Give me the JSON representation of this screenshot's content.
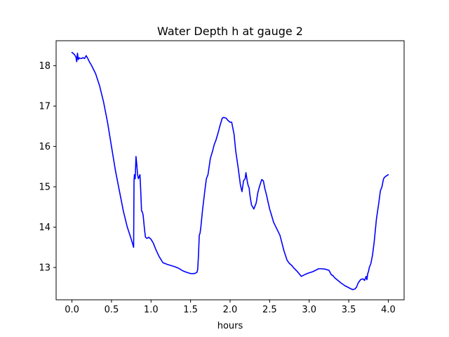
{
  "chart_data": {
    "type": "line",
    "title": "Water Depth h at gauge 2",
    "xlabel": "hours",
    "ylabel": "",
    "xlim": [
      -0.2,
      4.2
    ],
    "ylim": [
      12.2,
      18.62
    ],
    "grid": false,
    "xticks": [
      0.0,
      0.5,
      1.0,
      1.5,
      2.0,
      2.5,
      3.0,
      3.5,
      4.0
    ],
    "xtick_labels": [
      "0.0",
      "0.5",
      "1.0",
      "1.5",
      "2.0",
      "2.5",
      "3.0",
      "3.5",
      "4.0"
    ],
    "yticks": [
      13,
      14,
      15,
      16,
      17,
      18
    ],
    "ytick_labels": [
      "13",
      "14",
      "15",
      "16",
      "17",
      "18"
    ],
    "series": [
      {
        "color": "#0000ff",
        "x": [
          0.0,
          0.03,
          0.05,
          0.06,
          0.07,
          0.08,
          0.09,
          0.1,
          0.12,
          0.14,
          0.16,
          0.18,
          0.2,
          0.22,
          0.25,
          0.3,
          0.35,
          0.4,
          0.45,
          0.5,
          0.55,
          0.6,
          0.65,
          0.7,
          0.75,
          0.78,
          0.785,
          0.79,
          0.8,
          0.81,
          0.82,
          0.83,
          0.84,
          0.85,
          0.86,
          0.87,
          0.88,
          0.89,
          0.9,
          0.92,
          0.93,
          0.95,
          0.97,
          1.0,
          1.03,
          1.06,
          1.1,
          1.15,
          1.2,
          1.25,
          1.3,
          1.35,
          1.4,
          1.45,
          1.5,
          1.55,
          1.58,
          1.59,
          1.6,
          1.61,
          1.62,
          1.63,
          1.65,
          1.68,
          1.7,
          1.72,
          1.75,
          1.78,
          1.8,
          1.82,
          1.85,
          1.87,
          1.9,
          1.92,
          1.95,
          1.97,
          2.0,
          2.02,
          2.05,
          2.07,
          2.1,
          2.13,
          2.15,
          2.17,
          2.19,
          2.2,
          2.22,
          2.23,
          2.24,
          2.25,
          2.27,
          2.28,
          2.3,
          2.33,
          2.35,
          2.37,
          2.4,
          2.42,
          2.44,
          2.46,
          2.48,
          2.5,
          2.52,
          2.55,
          2.58,
          2.6,
          2.63,
          2.65,
          2.68,
          2.7,
          2.72,
          2.75,
          2.78,
          2.8,
          2.85,
          2.9,
          2.95,
          3.0,
          3.02,
          3.05,
          3.1,
          3.12,
          3.15,
          3.2,
          3.25,
          3.28,
          3.3,
          3.32,
          3.35,
          3.4,
          3.45,
          3.5,
          3.55,
          3.58,
          3.6,
          3.62,
          3.65,
          3.68,
          3.7,
          3.72,
          3.73,
          3.74,
          3.75,
          3.76,
          3.78,
          3.8,
          3.82,
          3.85,
          3.88,
          3.9,
          3.92,
          3.94,
          3.96,
          4.0
        ],
        "y": [
          18.33,
          18.28,
          18.22,
          18.1,
          18.31,
          18.15,
          18.2,
          18.18,
          18.18,
          18.2,
          18.18,
          18.25,
          18.18,
          18.1,
          18.0,
          17.8,
          17.5,
          17.1,
          16.6,
          16.0,
          15.4,
          14.9,
          14.4,
          14.0,
          13.7,
          13.5,
          15.15,
          15.3,
          15.2,
          15.75,
          15.55,
          15.3,
          15.2,
          15.25,
          15.3,
          14.9,
          14.4,
          14.38,
          14.3,
          13.9,
          13.75,
          13.72,
          13.75,
          13.7,
          13.6,
          13.45,
          13.28,
          13.12,
          13.08,
          13.05,
          13.02,
          12.98,
          12.92,
          12.88,
          12.85,
          12.85,
          12.88,
          12.95,
          13.3,
          13.8,
          13.85,
          14.0,
          14.4,
          14.9,
          15.2,
          15.3,
          15.7,
          15.9,
          16.05,
          16.15,
          16.35,
          16.5,
          16.7,
          16.72,
          16.7,
          16.65,
          16.6,
          16.6,
          16.3,
          15.9,
          15.5,
          15.05,
          14.88,
          15.15,
          15.2,
          15.35,
          15.1,
          15.02,
          14.98,
          14.8,
          14.55,
          14.52,
          14.45,
          14.6,
          14.85,
          15.0,
          15.18,
          15.15,
          14.95,
          14.8,
          14.62,
          14.45,
          14.32,
          14.12,
          14.0,
          13.92,
          13.8,
          13.65,
          13.42,
          13.3,
          13.18,
          13.1,
          13.05,
          13.0,
          12.9,
          12.78,
          12.83,
          12.87,
          12.88,
          12.9,
          12.95,
          12.97,
          12.97,
          12.96,
          12.93,
          12.82,
          12.8,
          12.75,
          12.7,
          12.62,
          12.55,
          12.5,
          12.45,
          12.47,
          12.52,
          12.62,
          12.7,
          12.72,
          12.68,
          12.78,
          12.7,
          12.85,
          12.9,
          13.0,
          13.1,
          13.3,
          13.6,
          14.2,
          14.6,
          14.9,
          15.0,
          15.2,
          15.25,
          15.3
        ]
      }
    ]
  }
}
